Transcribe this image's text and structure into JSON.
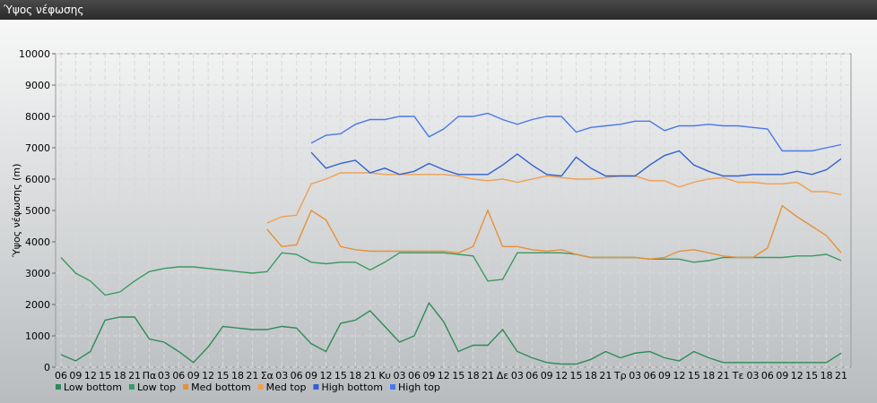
{
  "chart_data": {
    "type": "line",
    "title": "Ύψος νέφωσης",
    "y_label": "Ύψος νέφωσης (m)",
    "categories": [
      "06",
      "09",
      "12",
      "15",
      "18",
      "21",
      "Πα",
      "03",
      "06",
      "09",
      "12",
      "15",
      "18",
      "21",
      "Σα",
      "03",
      "06",
      "09",
      "12",
      "15",
      "18",
      "21",
      "Κυ",
      "03",
      "06",
      "09",
      "12",
      "15",
      "18",
      "21",
      "Δε",
      "03",
      "06",
      "09",
      "12",
      "15",
      "18",
      "21",
      "Τρ",
      "03",
      "06",
      "09",
      "12",
      "15",
      "18",
      "21",
      "Τε",
      "03",
      "06",
      "09",
      "12",
      "15",
      "18",
      "21"
    ],
    "ylim": [
      0,
      10000
    ],
    "yticks": [
      0,
      1000,
      2000,
      3000,
      4000,
      5000,
      6000,
      7000,
      8000,
      9000,
      10000
    ],
    "grid": true,
    "series": [
      {
        "name": "Low bottom",
        "color": "#2e8b57",
        "values": [
          400,
          200,
          500,
          1500,
          1600,
          1600,
          900,
          800,
          500,
          150,
          650,
          1300,
          1250,
          1200,
          1200,
          1300,
          1250,
          750,
          500,
          1400,
          1500,
          1800,
          1300,
          800,
          1000,
          2050,
          1450,
          500,
          700,
          700,
          1200,
          500,
          300,
          150,
          100,
          100,
          250,
          500,
          300,
          450,
          500,
          300,
          200,
          500,
          300,
          150,
          150,
          150,
          150,
          150,
          150,
          150,
          150,
          450
        ]
      },
      {
        "name": "Low top",
        "color": "#3a9a63",
        "values": [
          3500,
          3000,
          2750,
          2300,
          2400,
          2750,
          3050,
          3150,
          3200,
          3200,
          3150,
          3100,
          3050,
          3000,
          3050,
          3650,
          3600,
          3350,
          3300,
          3350,
          3350,
          3100,
          3350,
          3650,
          3650,
          3650,
          3650,
          3600,
          3550,
          2750,
          2800,
          3650,
          3650,
          3650,
          3650,
          3600,
          3500,
          3500,
          3500,
          3500,
          3450,
          3450,
          3450,
          3350,
          3400,
          3500,
          3500,
          3500,
          3500,
          3500,
          3550,
          3550,
          3600,
          3400
        ]
      },
      {
        "name": "Med bottom",
        "color": "#e8903a",
        "values": [
          null,
          null,
          null,
          null,
          null,
          null,
          null,
          null,
          null,
          null,
          null,
          null,
          null,
          null,
          4400,
          3850,
          3900,
          5000,
          4700,
          3850,
          3750,
          3700,
          3700,
          3700,
          3700,
          3700,
          3700,
          3650,
          3850,
          5000,
          3850,
          3850,
          3750,
          3700,
          3750,
          3600,
          3500,
          3500,
          3500,
          3500,
          3450,
          3500,
          3700,
          3750,
          3650,
          3550,
          3500,
          3500,
          3800,
          5150,
          4800,
          4500,
          4200,
          3650
        ]
      },
      {
        "name": "Med top",
        "color": "#f0a050",
        "values": [
          null,
          null,
          null,
          null,
          null,
          null,
          null,
          null,
          null,
          null,
          null,
          null,
          null,
          null,
          4600,
          4800,
          4850,
          5850,
          6000,
          6200,
          6200,
          6200,
          6150,
          6150,
          6150,
          6150,
          6150,
          6100,
          6000,
          5950,
          6000,
          5900,
          6000,
          6100,
          6050,
          6000,
          6000,
          6050,
          6100,
          6100,
          5950,
          5950,
          5750,
          5900,
          6000,
          6050,
          5900,
          5900,
          5850,
          5850,
          5900,
          5600,
          5600,
          5500
        ]
      },
      {
        "name": "High bottom",
        "color": "#3060d0",
        "values": [
          null,
          null,
          null,
          null,
          null,
          null,
          null,
          null,
          null,
          null,
          null,
          null,
          null,
          null,
          null,
          null,
          null,
          6850,
          6350,
          6500,
          6600,
          6200,
          6350,
          6150,
          6250,
          6500,
          6300,
          6150,
          6150,
          6150,
          6450,
          6800,
          6450,
          6150,
          6100,
          6700,
          6350,
          6100,
          6100,
          6100,
          6450,
          6750,
          6900,
          6450,
          6250,
          6100,
          6100,
          6150,
          6150,
          6150,
          6250,
          6150,
          6300,
          6650
        ]
      },
      {
        "name": "High top",
        "color": "#4a78e8",
        "values": [
          null,
          null,
          null,
          null,
          null,
          null,
          null,
          null,
          null,
          null,
          null,
          null,
          null,
          null,
          null,
          null,
          null,
          7150,
          7400,
          7450,
          7750,
          7900,
          7900,
          8000,
          8000,
          7350,
          7600,
          8000,
          8000,
          8100,
          7900,
          7750,
          7900,
          8000,
          8000,
          7500,
          7650,
          7700,
          7750,
          7850,
          7850,
          7550,
          7700,
          7700,
          7750,
          7700,
          7700,
          7650,
          7600,
          6900,
          6900,
          6900,
          7000,
          7100
        ]
      }
    ]
  }
}
